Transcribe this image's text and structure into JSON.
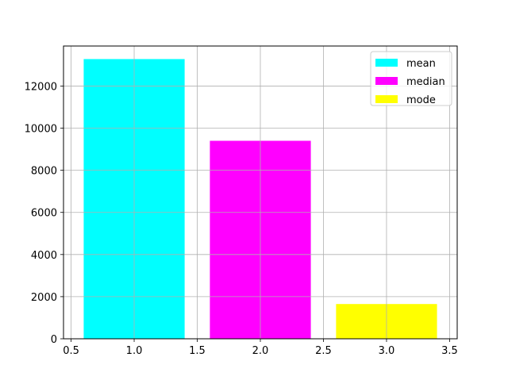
{
  "chart_data": {
    "type": "bar",
    "title": "",
    "xlabel": "",
    "ylabel": "",
    "xlim": [
      0.44,
      3.56
    ],
    "ylim": [
      0,
      13900
    ],
    "x_ticks": [
      0.5,
      1.0,
      1.5,
      2.0,
      2.5,
      3.0,
      3.5
    ],
    "x_tick_labels": [
      "0.5",
      "1.0",
      "1.5",
      "2.0",
      "2.5",
      "3.0",
      "3.5"
    ],
    "y_ticks": [
      0,
      2000,
      4000,
      6000,
      8000,
      10000,
      12000
    ],
    "y_tick_labels": [
      "0",
      "2000",
      "4000",
      "6000",
      "8000",
      "10000",
      "12000"
    ],
    "grid": true,
    "legend_position": "top-right",
    "bar_width": 0.8,
    "series": [
      {
        "name": "mean",
        "x": 1,
        "value": 13280,
        "color": "#00ffff"
      },
      {
        "name": "median",
        "x": 2,
        "value": 9400,
        "color": "#ff00ff"
      },
      {
        "name": "mode",
        "x": 3,
        "value": 1650,
        "color": "#ffff00"
      }
    ]
  }
}
